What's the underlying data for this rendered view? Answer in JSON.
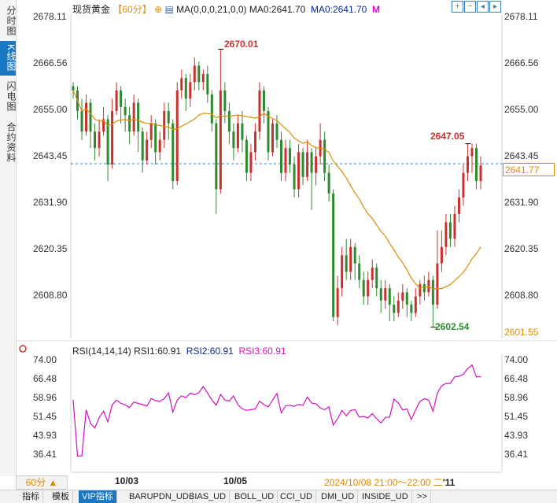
{
  "left_tabs": [
    {
      "label": "分时图",
      "active": false
    },
    {
      "label": "K线图",
      "active": true
    },
    {
      "label": "闪电图",
      "active": false
    },
    {
      "label": "合约资料",
      "active": false
    }
  ],
  "header": {
    "instrument": "现货黄金",
    "period": "【60分】",
    "ma_text": "MA(0,0,0,21,0,0)",
    "ma0_label": "MA0:2641.70",
    "ma0_label2": "MA0:2641.70",
    "m_label": "M"
  },
  "price_axis": {
    "left_labels": [
      "2678.11",
      "2666.56",
      "2655.00",
      "2643.45",
      "2631.90",
      "2620.35",
      "2608.80"
    ],
    "right_labels": [
      "2678.11",
      "2666.56",
      "2655.00",
      "2643.45",
      "2631.90",
      "2620.35",
      "2608.80"
    ],
    "current_price": "2641.77",
    "bottom_price": "2601.55"
  },
  "annotations": {
    "high": "2670.01",
    "low": "2602.54",
    "recent_high": "2647.05"
  },
  "rsi": {
    "title": "RSI(14,14,14)",
    "rsi1": "RSI1:60.91",
    "rsi2": "RSI2:60.91",
    "rsi3": "RSI3:60.91",
    "left_labels": [
      "74.00",
      "66.48",
      "58.96",
      "51.45",
      "43.93",
      "36.41"
    ],
    "right_labels": [
      "74.00",
      "66.48",
      "58.96",
      "51.45",
      "43.93",
      "36.41"
    ]
  },
  "xaxis": {
    "period_button": "60分 ▲",
    "dates": [
      "10/03",
      "10/05"
    ],
    "cursor": "2024/10/08 21:00～22:00 二",
    "cursor_tail": "'11"
  },
  "bottom_tabs": [
    {
      "label": "指标",
      "active": false
    },
    {
      "label": "模板",
      "active": false
    },
    {
      "label": "VIP指标",
      "active": true
    },
    {
      "label": "BARUPDN_UD",
      "active": false
    },
    {
      "label": "BIAS_UD",
      "active": false
    },
    {
      "label": "BOLL_UD",
      "active": false
    },
    {
      "label": "CCI_UD",
      "active": false
    },
    {
      "label": "DMI_UD",
      "active": false
    },
    {
      "label": "INSIDE_UD",
      "active": false
    },
    {
      "label": ">>",
      "active": false
    }
  ],
  "colors": {
    "up": "#c8322e",
    "down": "#2f8a2f",
    "ma": "#e08a00",
    "rsi": "#d010c0",
    "accent": "#1a78c2"
  },
  "chart_data": {
    "type": "candlestick",
    "ylim": [
      2598,
      2680
    ],
    "ma_period": 21,
    "candles": [
      [
        2661,
        2660,
        2662,
        2658
      ],
      [
        2660,
        2655,
        2661,
        2653
      ],
      [
        2655,
        2650,
        2658,
        2648
      ],
      [
        2650,
        2657,
        2659,
        2649
      ],
      [
        2657,
        2650,
        2658,
        2646
      ],
      [
        2650,
        2646,
        2652,
        2643
      ],
      [
        2646,
        2650,
        2653,
        2644
      ],
      [
        2650,
        2653,
        2656,
        2649
      ],
      [
        2653,
        2642,
        2654,
        2638
      ],
      [
        2642,
        2655,
        2658,
        2641
      ],
      [
        2655,
        2660,
        2662,
        2654
      ],
      [
        2660,
        2656,
        2661,
        2652
      ],
      [
        2656,
        2654,
        2658,
        2650
      ],
      [
        2654,
        2650,
        2656,
        2647
      ],
      [
        2650,
        2657,
        2659,
        2649
      ],
      [
        2657,
        2650,
        2658,
        2645
      ],
      [
        2650,
        2643,
        2651,
        2640
      ],
      [
        2643,
        2648,
        2650,
        2642
      ],
      [
        2648,
        2652,
        2654,
        2646
      ],
      [
        2652,
        2645,
        2653,
        2642
      ],
      [
        2645,
        2648,
        2650,
        2643
      ],
      [
        2648,
        2655,
        2657,
        2646
      ],
      [
        2655,
        2652,
        2657,
        2648
      ],
      [
        2652,
        2638,
        2653,
        2636
      ],
      [
        2638,
        2660,
        2662,
        2637
      ],
      [
        2660,
        2663,
        2665,
        2658
      ],
      [
        2663,
        2658,
        2664,
        2655
      ],
      [
        2658,
        2662,
        2664,
        2656
      ],
      [
        2662,
        2666,
        2668,
        2660
      ],
      [
        2666,
        2662,
        2667,
        2660
      ],
      [
        2662,
        2664,
        2665,
        2660
      ],
      [
        2664,
        2659,
        2666,
        2657
      ],
      [
        2659,
        2652,
        2660,
        2650
      ],
      [
        2652,
        2636,
        2653,
        2630
      ],
      [
        2636,
        2660,
        2670,
        2635
      ],
      [
        2660,
        2655,
        2662,
        2652
      ],
      [
        2655,
        2650,
        2657,
        2647
      ],
      [
        2650,
        2646,
        2652,
        2643
      ],
      [
        2646,
        2652,
        2654,
        2645
      ],
      [
        2652,
        2648,
        2655,
        2645
      ],
      [
        2648,
        2640,
        2649,
        2638
      ],
      [
        2640,
        2645,
        2647,
        2638
      ],
      [
        2645,
        2650,
        2652,
        2643
      ],
      [
        2650,
        2660,
        2662,
        2648
      ],
      [
        2660,
        2655,
        2661,
        2652
      ],
      [
        2655,
        2645,
        2656,
        2643
      ],
      [
        2645,
        2652,
        2653,
        2644
      ],
      [
        2652,
        2648,
        2654,
        2646
      ],
      [
        2648,
        2640,
        2650,
        2638
      ],
      [
        2640,
        2646,
        2648,
        2638
      ],
      [
        2646,
        2642,
        2648,
        2640
      ],
      [
        2642,
        2636,
        2644,
        2634
      ],
      [
        2636,
        2645,
        2647,
        2634
      ],
      [
        2645,
        2639,
        2646,
        2637
      ],
      [
        2639,
        2645,
        2648,
        2638
      ],
      [
        2645,
        2640,
        2646,
        2631
      ],
      [
        2640,
        2644,
        2646,
        2637
      ],
      [
        2644,
        2648,
        2652,
        2642
      ],
      [
        2648,
        2640,
        2650,
        2638
      ],
      [
        2640,
        2635,
        2642,
        2633
      ],
      [
        2635,
        2605,
        2636,
        2604
      ],
      [
        2605,
        2612,
        2615,
        2603
      ],
      [
        2612,
        2620,
        2622,
        2610
      ],
      [
        2620,
        2616,
        2624,
        2614
      ],
      [
        2616,
        2622,
        2624,
        2614
      ],
      [
        2622,
        2618,
        2623,
        2614
      ],
      [
        2618,
        2614,
        2620,
        2612
      ],
      [
        2614,
        2610,
        2616,
        2608
      ],
      [
        2610,
        2614,
        2616,
        2608
      ],
      [
        2614,
        2617,
        2619,
        2612
      ],
      [
        2617,
        2612,
        2618,
        2610
      ],
      [
        2612,
        2609,
        2614,
        2606
      ],
      [
        2609,
        2612,
        2614,
        2607
      ],
      [
        2612,
        2608,
        2613,
        2604
      ],
      [
        2608,
        2606,
        2610,
        2604
      ],
      [
        2606,
        2609,
        2611,
        2605
      ],
      [
        2609,
        2611,
        2613,
        2607
      ],
      [
        2611,
        2608,
        2612,
        2605
      ],
      [
        2608,
        2606,
        2609,
        2604
      ],
      [
        2606,
        2610,
        2612,
        2605
      ],
      [
        2610,
        2613,
        2614,
        2608
      ],
      [
        2613,
        2611,
        2615,
        2609
      ],
      [
        2611,
        2614,
        2616,
        2610
      ],
      [
        2614,
        2608,
        2615,
        2602.54
      ],
      [
        2608,
        2618,
        2626,
        2607
      ],
      [
        2618,
        2622,
        2626,
        2616
      ],
      [
        2622,
        2628,
        2630,
        2620
      ],
      [
        2628,
        2624,
        2630,
        2622
      ],
      [
        2624,
        2630,
        2632,
        2622
      ],
      [
        2630,
        2634,
        2636,
        2628
      ],
      [
        2634,
        2640,
        2642,
        2632
      ],
      [
        2640,
        2644,
        2647.05,
        2638
      ],
      [
        2644,
        2646,
        2647,
        2640
      ],
      [
        2646,
        2638,
        2647,
        2636
      ],
      [
        2638,
        2641.77,
        2644,
        2636
      ]
    ]
  }
}
